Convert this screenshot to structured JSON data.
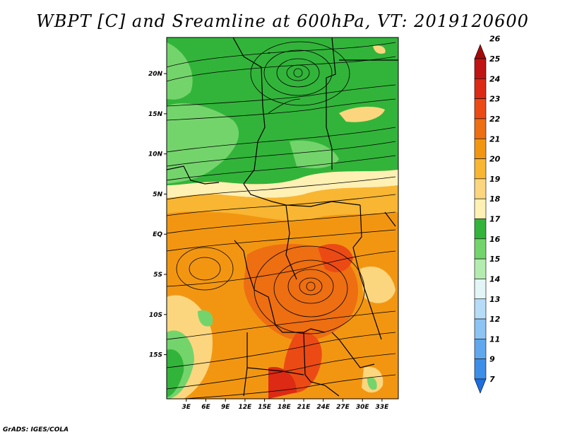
{
  "title": "WBPT [C] and Sreamline at 600hPa, VT: 2019120600",
  "footer": "GrADS: IGES/COLA",
  "map": {
    "lon_range": [
      0,
      35.5
    ],
    "lat_range": [
      -20.5,
      24.5
    ],
    "lon_ticks": [
      {
        "value": 3,
        "label": "3E"
      },
      {
        "value": 6,
        "label": "6E"
      },
      {
        "value": 9,
        "label": "9E"
      },
      {
        "value": 12,
        "label": "12E"
      },
      {
        "value": 15,
        "label": "15E"
      },
      {
        "value": 18,
        "label": "18E"
      },
      {
        "value": 21,
        "label": "21E"
      },
      {
        "value": 24,
        "label": "24E"
      },
      {
        "value": 27,
        "label": "27E"
      },
      {
        "value": 30,
        "label": "30E"
      },
      {
        "value": 33,
        "label": "33E"
      }
    ],
    "lat_ticks": [
      {
        "value": 20,
        "label": "20N"
      },
      {
        "value": 15,
        "label": "15N"
      },
      {
        "value": 10,
        "label": "10N"
      },
      {
        "value": 5,
        "label": "5N"
      },
      {
        "value": 0,
        "label": "EQ"
      },
      {
        "value": -5,
        "label": "5S"
      },
      {
        "value": -10,
        "label": "10S"
      },
      {
        "value": -15,
        "label": "15S"
      }
    ]
  },
  "colorbar": {
    "levels": [
      {
        "label": "26",
        "color": "#a50a0a"
      },
      {
        "label": "25",
        "color": "#c01414"
      },
      {
        "label": "24",
        "color": "#dc2a14"
      },
      {
        "label": "23",
        "color": "#ec4a14"
      },
      {
        "label": "22",
        "color": "#ee6e12"
      },
      {
        "label": "21",
        "color": "#f29612"
      },
      {
        "label": "20",
        "color": "#f8b632"
      },
      {
        "label": "19",
        "color": "#fcd67e"
      },
      {
        "label": "18",
        "color": "#fff0b4"
      },
      {
        "label": "17",
        "color": "#32b43a"
      },
      {
        "label": "16",
        "color": "#74d46c"
      },
      {
        "label": "15",
        "color": "#b4ecb0"
      },
      {
        "label": "14",
        "color": "#e2f6f8"
      },
      {
        "label": "13",
        "color": "#b6dcf8"
      },
      {
        "label": "12",
        "color": "#8cc4f4"
      },
      {
        "label": "11",
        "color": "#60a8ee"
      },
      {
        "label": "9",
        "color": "#3c8ee8"
      },
      {
        "label": "7",
        "color": "#1e6ee0"
      }
    ]
  }
}
